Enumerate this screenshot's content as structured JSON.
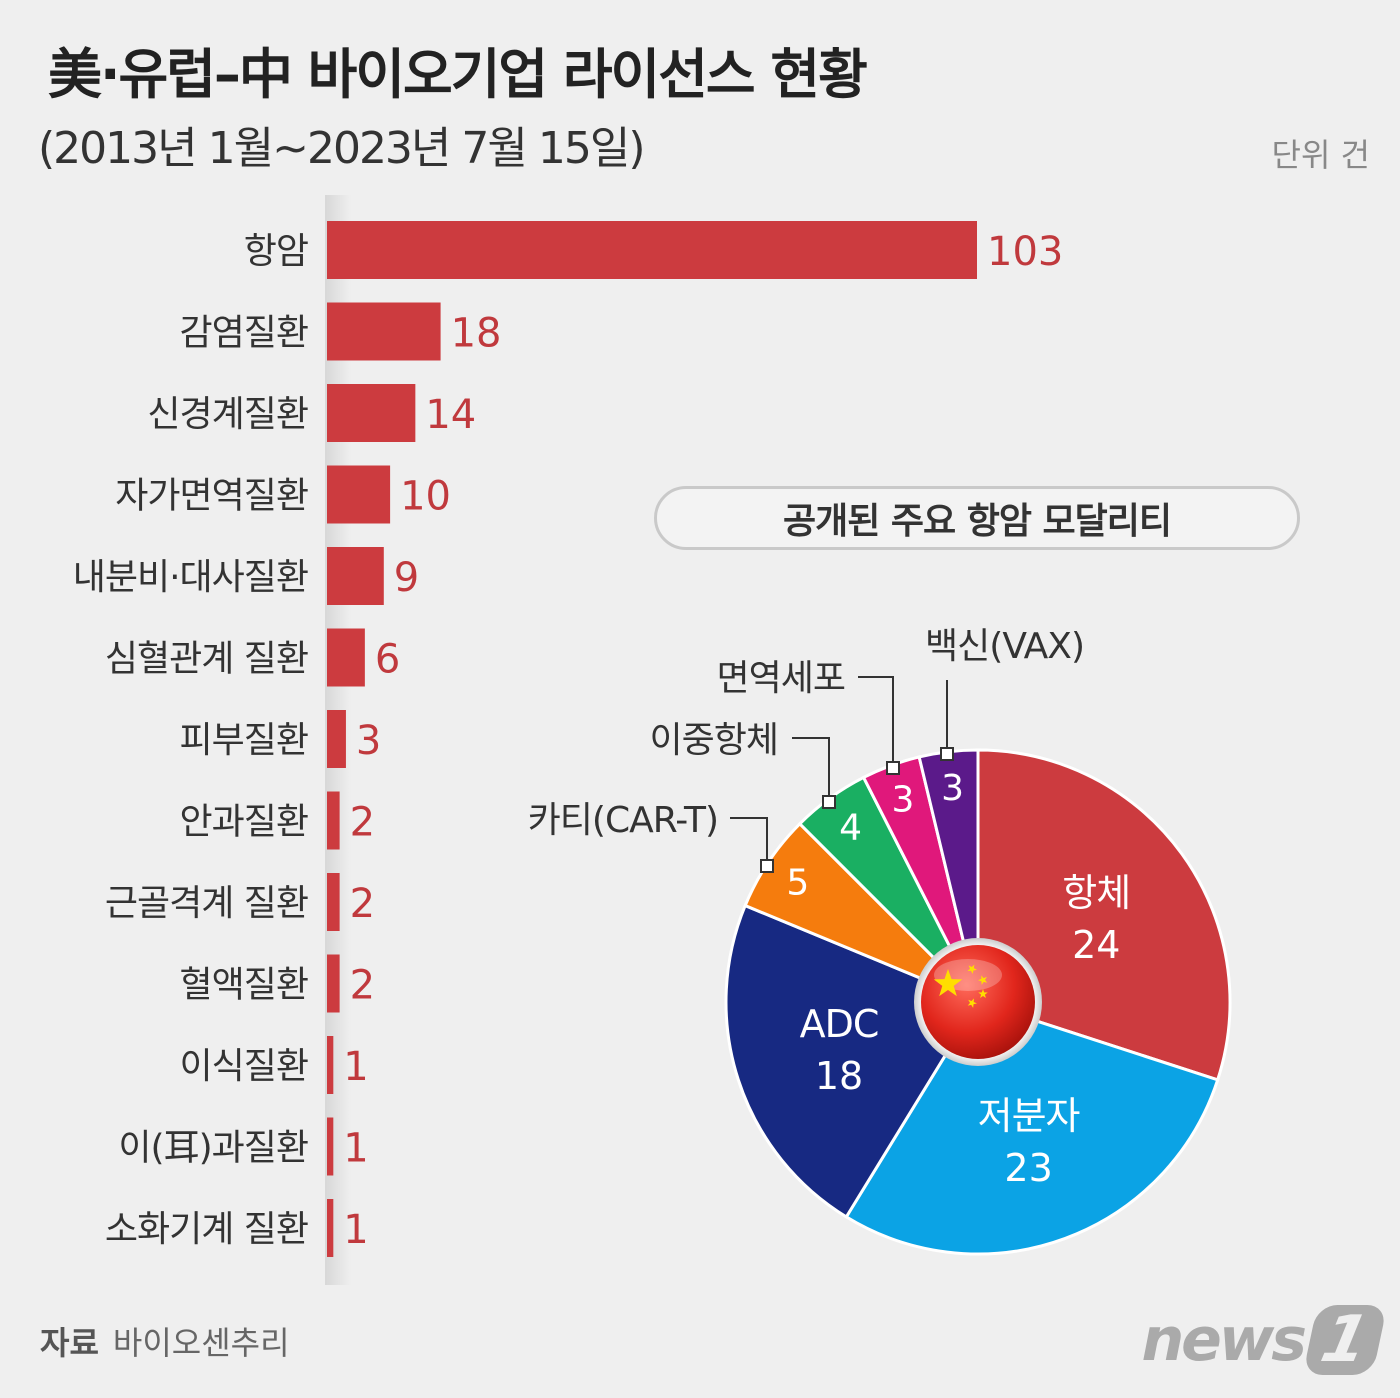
{
  "title": "美·유럽–中 바이오기업 라이선스 현황",
  "subtitle": "(2013년 1월~2023년 7월 15일)",
  "unit": "단위 건",
  "source_label": "자료",
  "source": "바이오센추리",
  "logo": {
    "text": "news",
    "mark": "1"
  },
  "colors": {
    "bar": "#cc3b3f",
    "value_text": "#c0393d"
  },
  "chart_data": [
    {
      "type": "bar",
      "orientation": "horizontal",
      "categories": [
        "항암",
        "감염질환",
        "신경계질환",
        "자가면역질환",
        "내분비·대사질환",
        "심혈관계 질환",
        "피부질환",
        "안과질환",
        "근골격계 질환",
        "혈액질환",
        "이식질환",
        "이(耳)과질환",
        "소화기계 질환"
      ],
      "values": [
        103,
        18,
        14,
        10,
        9,
        6,
        3,
        2,
        2,
        2,
        1,
        1,
        1
      ],
      "xlim": [
        0,
        110
      ]
    },
    {
      "type": "pie",
      "title": "공개된 주요 항암 모달리티",
      "slices": [
        {
          "name": "항체",
          "value": 24,
          "color": "#cc3b3f"
        },
        {
          "name": "저분자",
          "value": 23,
          "color": "#0ba3e5"
        },
        {
          "name": "ADC",
          "value": 18,
          "color": "#172982"
        },
        {
          "name": "카티(CAR-T)",
          "value": 5,
          "color": "#f57c0d"
        },
        {
          "name": "이중항체",
          "value": 4,
          "color": "#1aaf62"
        },
        {
          "name": "면역세포",
          "value": 3,
          "color": "#e0187b"
        },
        {
          "name": "백신(VAX)",
          "value": 3,
          "color": "#5b1a8a"
        }
      ],
      "center_icon": "china-flag-icon"
    }
  ]
}
